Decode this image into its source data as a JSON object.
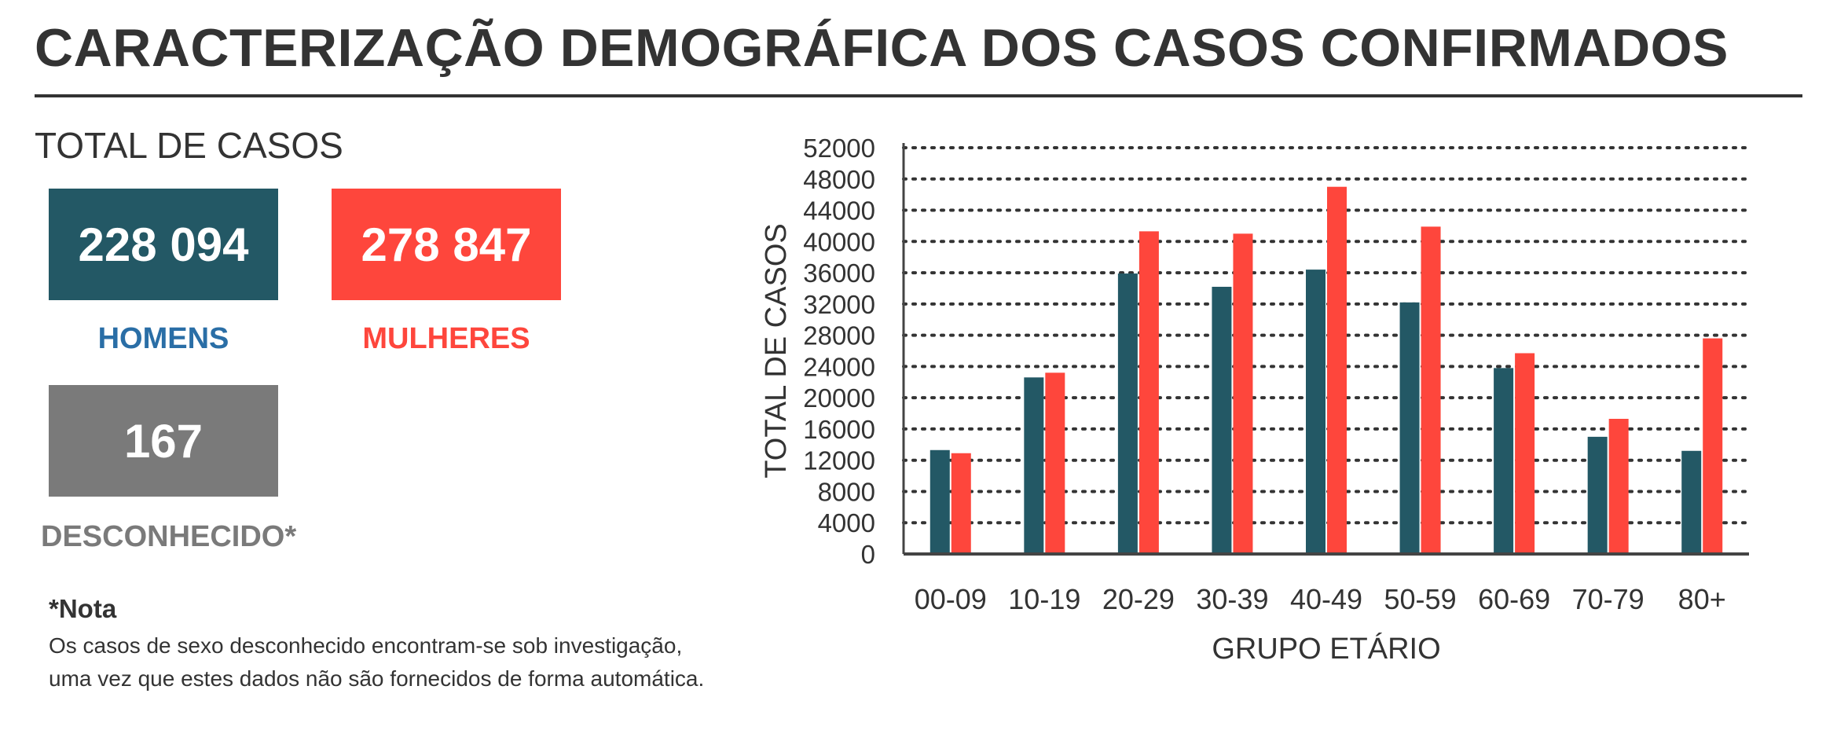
{
  "title": "CARACTERIZAÇÃO DEMOGRÁFICA DOS CASOS CONFIRMADOS",
  "subtitle": "TOTAL DE CASOS",
  "kpis": {
    "homens": {
      "value": "228 094",
      "label": "HOMENS",
      "box_color": "#235865",
      "label_color": "#2a6ea6"
    },
    "mulheres": {
      "value": "278 847",
      "label": "MULHERES",
      "box_color": "#fe463c",
      "label_color": "#fe463c"
    },
    "desconhecido": {
      "value": "167",
      "label": "DESCONHECIDO*",
      "box_color": "#7a7a7a",
      "label_color": "#7a7a7a"
    }
  },
  "note": {
    "title": "*Nota",
    "line1": "Os casos de sexo desconhecido encontram-se sob investigação,",
    "line2": "uma vez que estes dados não são fornecidos de forma automática."
  },
  "chart_data": {
    "type": "bar",
    "categories": [
      "00-09",
      "10-19",
      "20-29",
      "30-39",
      "40-49",
      "50-59",
      "60-69",
      "70-79",
      "80+"
    ],
    "series": [
      {
        "key": "homens",
        "color": "#235865",
        "values": [
          13300,
          22600,
          35900,
          34200,
          36400,
          32200,
          23800,
          15000,
          13200
        ]
      },
      {
        "key": "mulheres",
        "color": "#fe463c",
        "values": [
          12900,
          23200,
          41300,
          41000,
          47000,
          41900,
          25700,
          17300,
          27600
        ]
      }
    ],
    "xlabel": "GRUPO ETÁRIO",
    "ylabel": "TOTAL DE CASOS",
    "ylim": [
      0,
      52000
    ],
    "yticks": [
      0,
      4000,
      8000,
      12000,
      16000,
      20000,
      24000,
      28000,
      32000,
      36000,
      40000,
      44000,
      48000,
      52000
    ],
    "grid": "dotted-horizontal",
    "legend": "none"
  }
}
